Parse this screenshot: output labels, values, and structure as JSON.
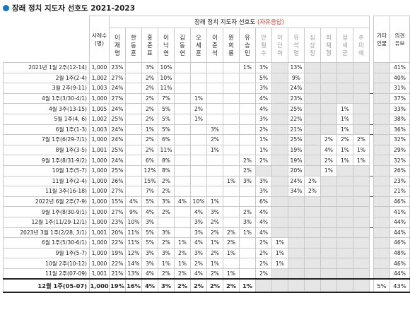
{
  "title": "장래 정치 지도자 선호도 2021-2023",
  "table": {
    "header_main": "장래 정치 지도자 선호도",
    "header_paren": "(자유응답)",
    "col_count": "사례수\n(명)",
    "candidates": [
      {
        "name": "이재명",
        "gray": false
      },
      {
        "name": "한동훈",
        "gray": false
      },
      {
        "name": "홍준표",
        "gray": false
      },
      {
        "name": "이낙연",
        "gray": false
      },
      {
        "name": "김동연",
        "gray": false
      },
      {
        "name": "오세훈",
        "gray": false
      },
      {
        "name": "이준석",
        "gray": false
      },
      {
        "name": "원희룡",
        "gray": false
      },
      {
        "name": "유승민",
        "gray": false
      },
      {
        "name": "안철수",
        "gray": true
      },
      {
        "name": "이단희",
        "gray": true
      },
      {
        "name": "유석열",
        "gray": true
      },
      {
        "name": "심상정",
        "gray": true
      },
      {
        "name": "최재형",
        "gray": true
      },
      {
        "name": "정세균",
        "gray": true
      },
      {
        "name": "추미애",
        "gray": true
      }
    ],
    "col_etc": "기타\n인물",
    "col_none": "의견\n유보",
    "rows": [
      {
        "label": "2021년 1월 2주(12-14)",
        "n": "1,000",
        "v": [
          "23%",
          "",
          "3%",
          "10%",
          "",
          "",
          "",
          "",
          "1%",
          "3%",
          "",
          "13%",
          "",
          "",
          "",
          "",
          "",
          "41%"
        ],
        "sep": false
      },
      {
        "label": "2월 1주(2-4)",
        "n": "1,002",
        "v": [
          "27%",
          "",
          "2%",
          "10%",
          "",
          "",
          "",
          "",
          "",
          "5%",
          "",
          "9%",
          "",
          "",
          "",
          "",
          "",
          "40%"
        ],
        "sep": false
      },
      {
        "label": "3월 2주(9-11)",
        "n": "1,003",
        "v": [
          "24%",
          "",
          "2%",
          "11%",
          "",
          "",
          "",
          "",
          "",
          "3%",
          "",
          "24%",
          "",
          "",
          "",
          "",
          "",
          "31%"
        ],
        "sep": false
      },
      {
        "label": "4월 1주(3/30-4/1)",
        "n": "1,000",
        "v": [
          "27%",
          "",
          "2%",
          "7%",
          "",
          "1%",
          "",
          "",
          "",
          "4%",
          "",
          "23%",
          "",
          "",
          "",
          "",
          "",
          "37%"
        ],
        "sep": true
      },
      {
        "label": "4월 3주(13-15)",
        "n": "1,005",
        "v": [
          "24%",
          "",
          "2%",
          "5%",
          "",
          "2%",
          "",
          "",
          "",
          "4%",
          "",
          "25%",
          "",
          "",
          "1%",
          "",
          "",
          "33%"
        ],
        "sep": false
      },
      {
        "label": "5월 1주(4, 6)",
        "n": "1,002",
        "v": [
          "25%",
          "",
          "2%",
          "5%",
          "",
          "1%",
          "",
          "",
          "",
          "3%",
          "",
          "22%",
          "",
          "",
          "1%",
          "",
          "",
          "38%"
        ],
        "sep": false
      },
      {
        "label": "6월 1주(1-3)",
        "n": "1,003",
        "v": [
          "24%",
          "",
          "1%",
          "5%",
          "",
          "",
          "3%",
          "",
          "",
          "2%",
          "",
          "21%",
          "",
          "",
          "1%",
          "",
          "",
          "36%"
        ],
        "sep": true
      },
      {
        "label": "7월 1주(6/29-7/1)",
        "n": "1,000",
        "v": [
          "24%",
          "",
          "2%",
          "6%",
          "",
          "",
          "2%",
          "",
          "",
          "1%",
          "",
          "25%",
          "",
          "2%",
          "2%",
          "2%",
          "",
          "32%"
        ],
        "sep": true
      },
      {
        "label": "8월 1주(3-5)",
        "n": "1,001",
        "v": [
          "25%",
          "",
          "2%",
          "11%",
          "",
          "",
          "1%",
          "",
          "",
          "1%",
          "",
          "19%",
          "",
          "4%",
          "1%",
          "1%",
          "",
          "29%"
        ],
        "sep": false
      },
      {
        "label": "9월 1주(8/31-9/2)",
        "n": "1,000",
        "v": [
          "24%",
          "",
          "6%",
          "8%",
          "",
          "",
          "",
          "",
          "2%",
          "2%",
          "",
          "19%",
          "",
          "2%",
          "1%",
          "1%",
          "",
          "32%"
        ],
        "sep": false
      },
      {
        "label": "10월 1주(5-7)",
        "n": "1,000",
        "v": [
          "25%",
          "",
          "12%",
          "8%",
          "",
          "",
          "",
          "",
          "2%",
          "",
          "",
          "20%",
          "",
          "1%",
          "",
          "",
          "",
          "26%"
        ],
        "sep": false
      },
      {
        "label": "11월 1주(2-4)",
        "n": "1,000",
        "v": [
          "26%",
          "",
          "15%",
          "2%",
          "",
          "",
          "",
          "1%",
          "3%",
          "3%",
          "",
          "24%",
          "2%",
          "",
          "",
          "",
          "",
          "23%"
        ],
        "sep": true
      },
      {
        "label": "11월 3주(16-18)",
        "n": "1,000",
        "v": [
          "27%",
          "",
          "7%",
          "2%",
          "",
          "",
          "",
          "",
          "",
          "3%",
          "",
          "34%",
          "2%",
          "",
          "",
          "",
          "",
          "21%"
        ],
        "sep": false
      },
      {
        "label": "2022년 6월 2주(7-9)",
        "n": "1,000",
        "v": [
          "15%",
          "4%",
          "5%",
          "3%",
          "4%",
          "10%",
          "1%",
          "",
          "",
          "6%",
          "",
          "",
          "",
          "",
          "",
          "",
          "",
          "46%"
        ],
        "sep": true
      },
      {
        "label": "9월 1주(8/30-9/1)",
        "n": "1,000",
        "v": [
          "27%",
          "9%",
          "4%",
          "2%",
          "",
          "4%",
          "3%",
          "",
          "2%",
          "4%",
          "",
          "",
          "",
          "",
          "",
          "",
          "",
          "41%"
        ],
        "sep": false
      },
      {
        "label": "12월 1주(11/29-12/1)",
        "n": "1,000",
        "v": [
          "23%",
          "10%",
          "3%",
          "",
          "",
          "3%",
          "2%",
          "",
          "3%",
          "4%",
          "",
          "",
          "",
          "",
          "",
          "",
          "",
          "44%"
        ],
        "sep": false
      },
      {
        "label": "2023년 3월 1주(2/28, 3/1)",
        "n": "1,001",
        "v": [
          "20%",
          "11%",
          "5%",
          "3%",
          "",
          "3%",
          "2%",
          "2%",
          "1%",
          "4%",
          "",
          "",
          "",
          "",
          "",
          "",
          "",
          "44%"
        ],
        "sep": true
      },
      {
        "label": "6월 1주(5/30-6/1)",
        "n": "1,000",
        "v": [
          "22%",
          "11%",
          "5%",
          "2%",
          "1%",
          "4%",
          "1%",
          "2%",
          "",
          "2%",
          "1%",
          "",
          "",
          "",
          "",
          "",
          "",
          "46%"
        ],
        "sep": false
      },
      {
        "label": "9월 1주(5-7)",
        "n": "1,000",
        "v": [
          "19%",
          "12%",
          "3%",
          "3%",
          "2%",
          "3%",
          "2%",
          "1%",
          "",
          "2%",
          "1%",
          "",
          "",
          "",
          "",
          "",
          "",
          "48%"
        ],
        "sep": false
      },
      {
        "label": "10월 2주(10-12)",
        "n": "1,000",
        "v": [
          "22%",
          "14%",
          "3%",
          "1%",
          "1%",
          "2%",
          "1%",
          "",
          "",
          "2%",
          "1%",
          "",
          "",
          "",
          "",
          "",
          "",
          "46%"
        ],
        "sep": false
      },
      {
        "label": "11월 2주(07-09)",
        "n": "1,001",
        "v": [
          "21%",
          "13%",
          "4%",
          "2%",
          "2%",
          "4%",
          "2%",
          "1%",
          "",
          "2%",
          "",
          "",
          "",
          "",
          "",
          "",
          "",
          "44%"
        ],
        "sep": false
      }
    ],
    "last_row": {
      "label": "12월 1주(05-07)",
      "n": "1,000",
      "v": [
        "19%",
        "16%",
        "4%",
        "3%",
        "2%",
        "2%",
        "2%",
        "2%",
        "1%",
        "",
        "",
        "",
        "",
        "",
        "",
        "",
        "5%",
        "43%"
      ]
    }
  }
}
